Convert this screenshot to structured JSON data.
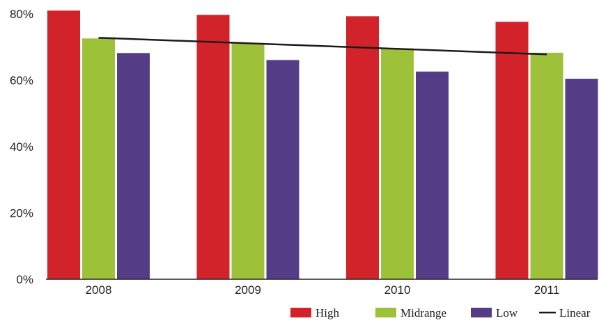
{
  "chart_data": {
    "type": "bar",
    "categories": [
      "2008",
      "2009",
      "2010",
      "2011"
    ],
    "series": [
      {
        "name": "High",
        "color": "#d2232a",
        "values": [
          81,
          79.7,
          79.3,
          77.6
        ]
      },
      {
        "name": "Midrange",
        "color": "#9ec13a",
        "values": [
          72.6,
          71.1,
          69.6,
          68.3
        ]
      },
      {
        "name": "Low",
        "color": "#553c87",
        "values": [
          68.2,
          66.1,
          62.6,
          60.4
        ]
      }
    ],
    "trendline": {
      "name": "Linear",
      "color": "#1a1a1a",
      "start": 72.8,
      "end": 67.8
    },
    "ylim": [
      0,
      80
    ],
    "yticks": [
      0,
      20,
      40,
      60,
      80
    ],
    "ytick_labels": [
      "0%",
      "20%",
      "40%",
      "60%",
      "80%"
    ],
    "grid": false,
    "legend_position": "bottom-right",
    "title": "",
    "xlabel": "",
    "ylabel": ""
  }
}
